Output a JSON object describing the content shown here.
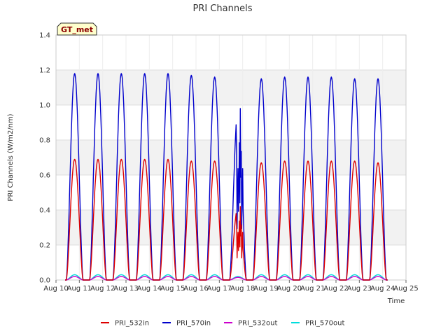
{
  "chart_data": {
    "type": "line",
    "title": "PRI Channels",
    "xlabel": "Time",
    "ylabel": "PRI Channels (W/m2/nm)",
    "ylim": [
      0,
      1.4
    ],
    "yticks": [
      0.0,
      0.2,
      0.4,
      0.6,
      0.8,
      1.0,
      1.2,
      1.4
    ],
    "ytick_labels": [
      "0.0",
      "0.2",
      "0.4",
      "0.6",
      "0.8",
      "1.0",
      "1.2",
      "1.4"
    ],
    "xlim": [
      10,
      25
    ],
    "xticks": [
      10,
      11,
      12,
      13,
      14,
      15,
      16,
      17,
      18,
      19,
      20,
      21,
      22,
      23,
      24,
      25
    ],
    "xtick_labels": [
      "Aug 10",
      "Aug 11",
      "Aug 12",
      "Aug 13",
      "Aug 14",
      "Aug 15",
      "Aug 16",
      "Aug 17",
      "Aug 18",
      "Aug 19",
      "Aug 20",
      "Aug 21",
      "Aug 22",
      "Aug 23",
      "Aug 24",
      "Aug 25"
    ],
    "badge": "GT_met",
    "legend_position": "bottom-center",
    "grid": true,
    "day_centers": [
      10.8,
      11.8,
      12.8,
      13.8,
      14.8,
      15.8,
      16.8,
      17.8,
      18.8,
      19.8,
      20.8,
      21.8,
      22.8,
      23.8
    ],
    "series": [
      {
        "name": "PRI_532in",
        "color": "#dd0000",
        "daily_peaks": [
          0.69,
          0.69,
          0.69,
          0.69,
          0.69,
          0.68,
          0.68,
          0.42,
          0.67,
          0.68,
          0.68,
          0.68,
          0.68,
          0.67
        ]
      },
      {
        "name": "PRI_570in",
        "color": "#0000cc",
        "daily_peaks": [
          1.18,
          1.18,
          1.18,
          1.18,
          1.18,
          1.17,
          1.16,
          0.98,
          1.15,
          1.16,
          1.16,
          1.16,
          1.15,
          1.15
        ]
      },
      {
        "name": "PRI_532out",
        "color": "#cc00cc",
        "daily_peaks": [
          0.02,
          0.02,
          0.02,
          0.02,
          0.02,
          0.02,
          0.02,
          0.015,
          0.02,
          0.02,
          0.02,
          0.02,
          0.02,
          0.02
        ]
      },
      {
        "name": "PRI_570out",
        "color": "#00dddd",
        "daily_peaks": [
          0.03,
          0.03,
          0.03,
          0.03,
          0.03,
          0.03,
          0.03,
          0.02,
          0.03,
          0.03,
          0.03,
          0.03,
          0.03,
          0.03
        ]
      }
    ]
  }
}
